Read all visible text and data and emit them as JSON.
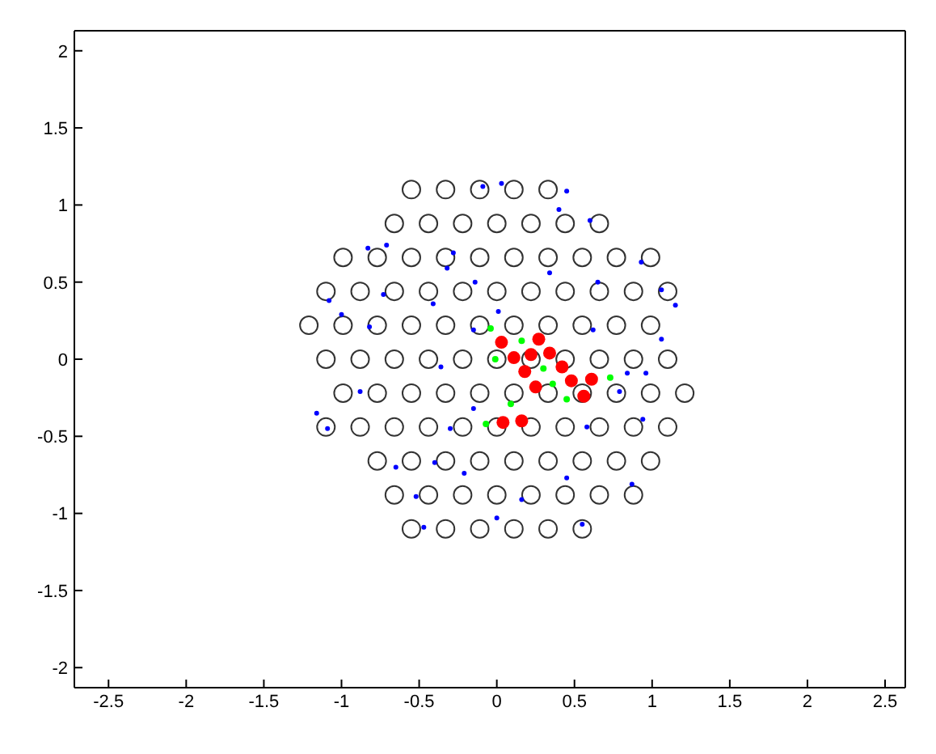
{
  "chart_data": {
    "type": "scatter",
    "xlim": [
      -2.72,
      2.63
    ],
    "ylim": [
      -2.13,
      2.13
    ],
    "xticks": [
      -2.5,
      -2,
      -1.5,
      -1,
      -0.5,
      0,
      0.5,
      1,
      1.5,
      2,
      2.5
    ],
    "yticks": [
      -2,
      -1.5,
      -1,
      -0.5,
      0,
      0.5,
      1,
      1.5,
      2
    ],
    "legend": false,
    "marker": "circle",
    "series": [
      {
        "color": "#333333",
        "x": [
          -0.55,
          -0.33,
          -0.11,
          0.11,
          0.33,
          -0.66,
          -0.44,
          -0.22,
          0,
          0.22,
          0.44,
          0.66,
          -0.99,
          -0.77,
          -0.55,
          -0.33,
          -0.11,
          0.11,
          0.33,
          0.55,
          0.77,
          0.99,
          -1.1,
          -0.88,
          -0.66,
          -0.44,
          -0.22,
          0,
          0.22,
          0.44,
          0.66,
          0.88,
          1.1,
          -1.21,
          -0.99,
          -0.77,
          -0.55,
          -0.33,
          -0.11,
          0.11,
          0.33,
          0.55,
          0.77,
          0.99,
          -1.1,
          -0.88,
          -0.66,
          -0.44,
          -0.22,
          0,
          0.22,
          0.44,
          0.66,
          0.88,
          1.1,
          -0.99,
          -0.77,
          -0.55,
          -0.33,
          -0.11,
          0.11,
          0.33,
          0.55,
          0.77,
          0.99,
          1.21,
          -1.1,
          -0.88,
          -0.66,
          -0.44,
          -0.22,
          0,
          0.22,
          0.44,
          0.66,
          0.88,
          1.1,
          -0.77,
          -0.55,
          -0.33,
          -0.11,
          0.11,
          0.33,
          0.55,
          0.77,
          0.99,
          -0.66,
          -0.44,
          -0.22,
          0,
          0.22,
          0.44,
          0.66,
          0.88,
          -0.55,
          -0.33,
          -0.11,
          0.11,
          0.33,
          0.55
        ],
        "values": [
          1.1,
          1.1,
          1.1,
          1.1,
          1.1,
          0.88,
          0.88,
          0.88,
          0.88,
          0.88,
          0.88,
          0.88,
          0.66,
          0.66,
          0.66,
          0.66,
          0.66,
          0.66,
          0.66,
          0.66,
          0.66,
          0.66,
          0.44,
          0.44,
          0.44,
          0.44,
          0.44,
          0.44,
          0.44,
          0.44,
          0.44,
          0.44,
          0.44,
          0.22,
          0.22,
          0.22,
          0.22,
          0.22,
          0.22,
          0.22,
          0.22,
          0.22,
          0.22,
          0.22,
          0,
          0,
          0,
          0,
          0,
          0,
          0,
          0,
          0,
          0,
          0,
          -0.22,
          -0.22,
          -0.22,
          -0.22,
          -0.22,
          -0.22,
          -0.22,
          -0.22,
          -0.22,
          -0.22,
          -0.22,
          -0.44,
          -0.44,
          -0.44,
          -0.44,
          -0.44,
          -0.44,
          -0.44,
          -0.44,
          -0.44,
          -0.44,
          -0.44,
          -0.66,
          -0.66,
          -0.66,
          -0.66,
          -0.66,
          -0.66,
          -0.66,
          -0.66,
          -0.66,
          -0.88,
          -0.88,
          -0.88,
          -0.88,
          -0.88,
          -0.88,
          -0.88,
          -0.88,
          -1.1,
          -1.1,
          -1.1,
          -1.1,
          -1.1,
          -1.1
        ]
      },
      {
        "color": "#0000ff",
        "x": [
          -0.09,
          0.03,
          0.45,
          0.4,
          0.6,
          -0.83,
          -0.71,
          -0.28,
          -0.32,
          -0.14,
          0.34,
          0.65,
          0.93,
          -1.08,
          -1.0,
          -0.73,
          -0.41,
          0.01,
          1.06,
          1.15,
          0.62,
          1.06,
          -0.15,
          -0.82,
          -0.36,
          0.84,
          0.96,
          -0.88,
          -1.16,
          -1.09,
          -0.15,
          0.79,
          0.94,
          0.58,
          -0.3,
          -0.4,
          -0.65,
          -0.21,
          0.45,
          0.87,
          -0.52,
          0.16,
          0.0,
          -0.47,
          0.55
        ],
        "values": [
          1.12,
          1.14,
          1.09,
          0.97,
          0.9,
          0.72,
          0.74,
          0.69,
          0.59,
          0.5,
          0.56,
          0.5,
          0.63,
          0.38,
          0.29,
          0.42,
          0.36,
          0.31,
          0.45,
          0.35,
          0.19,
          0.13,
          0.19,
          0.21,
          -0.05,
          -0.09,
          -0.09,
          -0.21,
          -0.35,
          -0.45,
          -0.32,
          -0.21,
          -0.39,
          -0.44,
          -0.45,
          -0.67,
          -0.7,
          -0.74,
          -0.77,
          -0.81,
          -0.89,
          -0.91,
          -1.03,
          -1.09,
          -1.07
        ]
      },
      {
        "color": "#00ff00",
        "x": [
          -0.04,
          0.16,
          -0.01,
          0.3,
          0.36,
          0.45,
          0.73,
          0.09,
          -0.07
        ],
        "values": [
          0.2,
          0.12,
          0.0,
          -0.06,
          -0.16,
          -0.26,
          -0.12,
          -0.29,
          -0.42
        ]
      },
      {
        "color": "#ff0000",
        "x": [
          0.03,
          0.11,
          0.22,
          0.27,
          0.34,
          0.42,
          0.18,
          0.25,
          0.48,
          0.61,
          0.56,
          0.04,
          0.16
        ],
        "values": [
          0.11,
          0.01,
          0.03,
          0.13,
          0.04,
          -0.05,
          -0.08,
          -0.18,
          -0.14,
          -0.13,
          -0.24,
          -0.41,
          -0.4
        ]
      }
    ]
  }
}
